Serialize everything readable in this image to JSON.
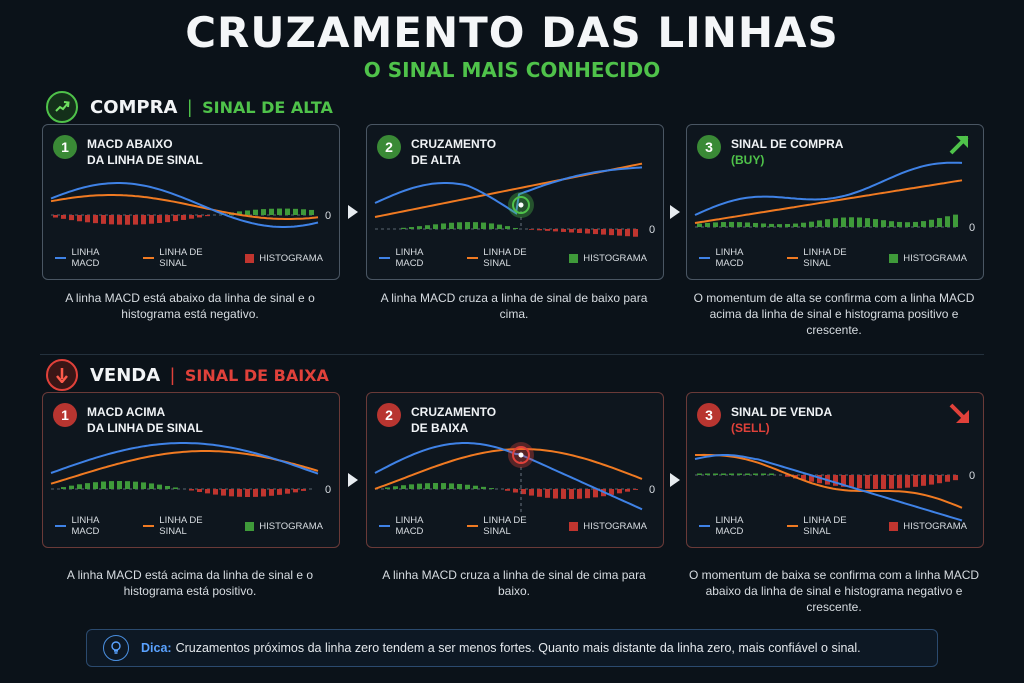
{
  "header": {
    "title": "CRUZAMENTO DAS LINHAS",
    "subtitle": "O SINAL MAIS CONHECIDO"
  },
  "buy_section": {
    "title": "COMPRA",
    "separator": "|",
    "subtitle": "SINAL DE ALTA",
    "color": "#4fc24a",
    "panels": [
      {
        "number": "1",
        "title_line1": "MACD ABAIXO",
        "title_line2": "DA LINHA DE SINAL",
        "title_line3": "",
        "description": "A linha MACD está abaixo da linha de sinal e o histograma está negativo."
      },
      {
        "number": "2",
        "title_line1": "CRUZAMENTO",
        "title_line2": "DE ALTA",
        "title_line3": "",
        "description": "A linha MACD cruza a linha de sinal de baixo para cima."
      },
      {
        "number": "3",
        "title_line1": "SINAL DE COMPRA",
        "title_line2": "",
        "title_line3": "(BUY)",
        "description": "O momentum de alta se confirma com a linha MACD acima da linha de sinal e histograma positivo e crescente."
      }
    ]
  },
  "sell_section": {
    "title": "VENDA",
    "separator": "|",
    "subtitle": "SINAL DE BAIXA",
    "color": "#e0413a",
    "panels": [
      {
        "number": "1",
        "title_line1": "MACD ACIMA",
        "title_line2": "DA LINHA DE SINAL",
        "title_line3": "",
        "description": "A linha MACD está acima da linha de sinal e o histograma está positivo."
      },
      {
        "number": "2",
        "title_line1": "CRUZAMENTO",
        "title_line2": "DE BAIXA",
        "title_line3": "",
        "description": "A linha MACD cruza a linha de sinal de cima para baixo."
      },
      {
        "number": "3",
        "title_line1": "SINAL DE VENDA",
        "title_line2": "",
        "title_line3": "(SELL)",
        "description": "O momentum de baixa se confirma com a linha MACD abaixo da linha de sinal e histograma negativo e crescente."
      }
    ]
  },
  "legend": {
    "macd": "LINHA MACD",
    "signal": "LINHA DE SINAL",
    "histogram": "HISTOGRAMA",
    "zero_label": "0"
  },
  "colors": {
    "macd_line": "#3f82e6",
    "signal_line": "#f07a22",
    "hist_positive": "#3f9a3a",
    "hist_negative": "#c0352f"
  },
  "tip": {
    "label": "Dica:",
    "text": "Cruzamentos próximos da linha zero tendem a ser menos fortes. Quanto mais distante da linha zero, mais confiável o sinal."
  }
}
